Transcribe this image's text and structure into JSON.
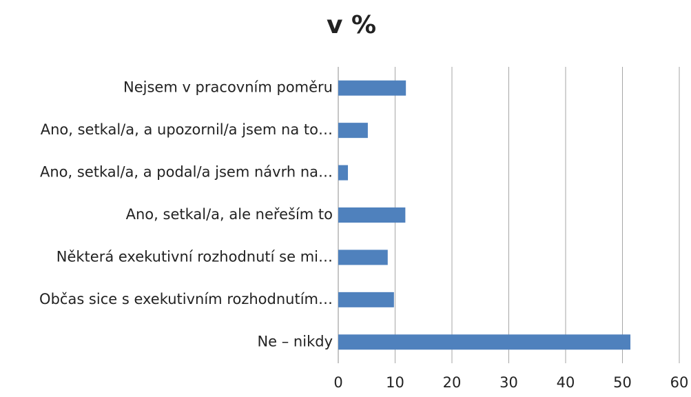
{
  "chart_data": {
    "type": "barh",
    "title": "v %",
    "categories": [
      "Nejsem v pracovním poměru",
      "Ano, setkal/a, a upozornil/a jsem na to…",
      "Ano, setkal/a, a podal/a jsem návrh na…",
      "Ano, setkal/a, ale neřeším to",
      "Některá exekutivní rozhodnutí se mi…",
      "Občas sice s exekutivním rozhodnutím…",
      "Ne – nikdy"
    ],
    "values": [
      11.9,
      5.2,
      1.7,
      11.8,
      8.7,
      9.8,
      51.4
    ],
    "color": "#4f81bd",
    "xlim": [
      0,
      60
    ],
    "xticks": [
      0,
      10,
      20,
      30,
      40,
      50,
      60
    ],
    "grid": true
  }
}
